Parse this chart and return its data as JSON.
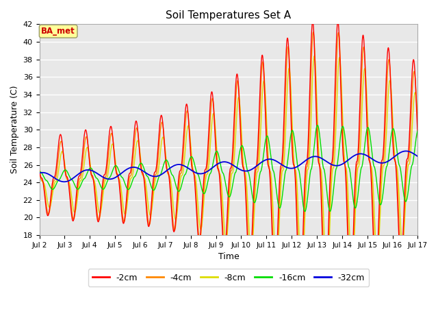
{
  "title": "Soil Temperatures Set A",
  "xlabel": "Time",
  "ylabel": "Soil Temperature (C)",
  "ylim": [
    18,
    42
  ],
  "yticks": [
    18,
    20,
    22,
    24,
    26,
    28,
    30,
    32,
    34,
    36,
    38,
    40,
    42
  ],
  "xtick_labels": [
    "Jul 2",
    "Jul 3",
    "Jul 4",
    "Jul 5",
    "Jul 6",
    "Jul 7",
    "Jul 8",
    "Jul 9",
    "Jul 10",
    "Jul 11",
    "Jul 12",
    "Jul 13",
    "Jul 14",
    "Jul 15",
    "Jul 16",
    "Jul 17"
  ],
  "colors": {
    "-2cm": "#ff0000",
    "-4cm": "#ff8800",
    "-8cm": "#dddd00",
    "-16cm": "#00dd00",
    "-32cm": "#0000dd"
  },
  "legend_label": "BA_met",
  "background_color": "#e8e8e8",
  "fig_background": "#ffffff",
  "annotation_box_color": "#ffff99",
  "annotation_text_color": "#cc0000"
}
